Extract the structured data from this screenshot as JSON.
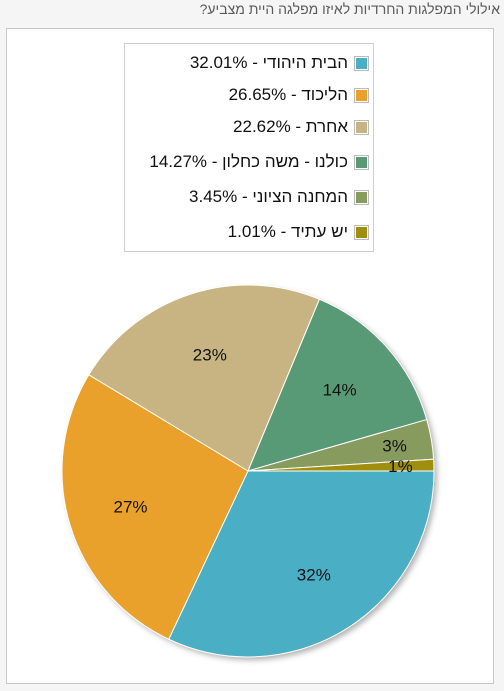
{
  "chart_data": {
    "type": "pie",
    "title": "אילולי המפלגות החרדיות לאיזו מפלגה היית מצביע?",
    "slices": [
      {
        "name": "הבית היהודי",
        "legend_label": "הבית היהודי - 32.01%",
        "value": 32.01,
        "data_label": "32%",
        "color": "#4aafc5"
      },
      {
        "name": "הליכוד",
        "legend_label": "הליכוד - 26.65%",
        "value": 26.65,
        "data_label": "27%",
        "color": "#eaa12c"
      },
      {
        "name": "אחרת",
        "legend_label": "אחרת - 22.62%",
        "value": 22.62,
        "data_label": "23%",
        "color": "#c7b482"
      },
      {
        "name": "כולנו - משה כחלון",
        "legend_label": "כולנו - משה כחלון - 14.27%",
        "value": 14.27,
        "data_label": "14%",
        "color": "#599a76"
      },
      {
        "name": "המחנה הציוני",
        "legend_label": "המחנה הציוני - 3.45%",
        "value": 3.45,
        "data_label": "3%",
        "color": "#889b5e"
      },
      {
        "name": "יש עתיד",
        "legend_label": "יש עתיד - 1.01%",
        "value": 1.01,
        "data_label": "1%",
        "color": "#a08f0f"
      }
    ],
    "legend_position": "top"
  }
}
